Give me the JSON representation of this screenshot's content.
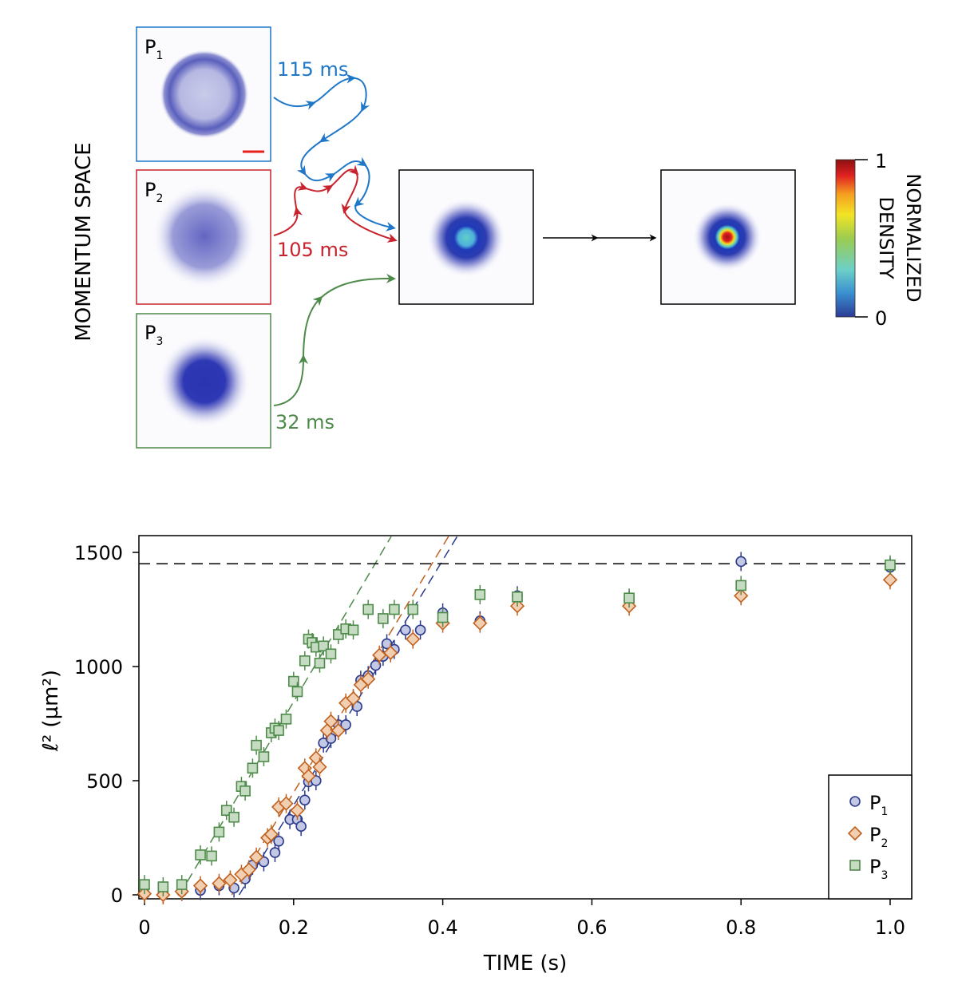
{
  "diagram": {
    "side_label": "MOMENTUM SPACE",
    "panels": [
      {
        "base": "P",
        "sub": "1",
        "color": "#1f77c8"
      },
      {
        "base": "P",
        "sub": "2",
        "color": "#c8232c"
      },
      {
        "base": "P",
        "sub": "3",
        "color": "#4e8a4a"
      }
    ],
    "times": [
      "115 ms",
      "105 ms",
      "32 ms"
    ],
    "colorbar": {
      "title_line1": "NORMALIZED",
      "title_line2": "DENSITY",
      "max_label": "1",
      "min_label": "0",
      "colormap": "jet"
    }
  },
  "chart_data": {
    "type": "scatter",
    "xlabel": "TIME (s)",
    "ylabel": "ℓ² (µm²)",
    "xlim": [
      -0.01,
      1.03
    ],
    "ylim": [
      -30,
      1570
    ],
    "xticks": [
      "0",
      "0.2",
      "0.4",
      "0.6",
      "0.8",
      "1.0"
    ],
    "xtick_values": [
      0,
      0.2,
      0.4,
      0.6,
      0.8,
      1.0
    ],
    "yticks": [
      "0",
      "500",
      "1000",
      "1500"
    ],
    "ytick_values": [
      0,
      500,
      1000,
      1500
    ],
    "grid": false,
    "legend_position": "bottom-right",
    "reference_line": {
      "y": 1450,
      "style": "dashed",
      "color": "#000000"
    },
    "series": [
      {
        "name": "P1",
        "base": "P",
        "sub": "1",
        "marker": "circle",
        "stroke": "#2b3a8c",
        "fill": "#c3c8e4",
        "fit": {
          "x0": 0.127,
          "slope": 5370
        },
        "points": [
          [
            0,
            5
          ],
          [
            0.025,
            5
          ],
          [
            0.05,
            15
          ],
          [
            0.075,
            20
          ],
          [
            0.1,
            40
          ],
          [
            0.12,
            30
          ],
          [
            0.135,
            70
          ],
          [
            0.145,
            130
          ],
          [
            0.16,
            145
          ],
          [
            0.175,
            185
          ],
          [
            0.18,
            235
          ],
          [
            0.195,
            330
          ],
          [
            0.205,
            330
          ],
          [
            0.21,
            300
          ],
          [
            0.215,
            415
          ],
          [
            0.22,
            495
          ],
          [
            0.23,
            500
          ],
          [
            0.24,
            665
          ],
          [
            0.25,
            685
          ],
          [
            0.26,
            745
          ],
          [
            0.27,
            745
          ],
          [
            0.28,
            855
          ],
          [
            0.285,
            825
          ],
          [
            0.29,
            940
          ],
          [
            0.3,
            960
          ],
          [
            0.31,
            1005
          ],
          [
            0.32,
            1045
          ],
          [
            0.325,
            1100
          ],
          [
            0.335,
            1075
          ],
          [
            0.35,
            1160
          ],
          [
            0.37,
            1160
          ],
          [
            0.4,
            1235
          ],
          [
            0.45,
            1200
          ],
          [
            0.5,
            1310
          ],
          [
            0.65,
            1290
          ],
          [
            0.8,
            1460
          ],
          [
            1.0,
            1435
          ]
        ]
      },
      {
        "name": "P2",
        "base": "P",
        "sub": "2",
        "marker": "diamond",
        "stroke": "#c0611f",
        "fill": "#f2cfb0",
        "fit": {
          "x0": 0.117,
          "slope": 5400
        },
        "points": [
          [
            0,
            5
          ],
          [
            0.025,
            0
          ],
          [
            0.05,
            15
          ],
          [
            0.075,
            40
          ],
          [
            0.1,
            50
          ],
          [
            0.115,
            65
          ],
          [
            0.13,
            90
          ],
          [
            0.14,
            110
          ],
          [
            0.15,
            165
          ],
          [
            0.165,
            250
          ],
          [
            0.17,
            265
          ],
          [
            0.18,
            385
          ],
          [
            0.19,
            400
          ],
          [
            0.205,
            370
          ],
          [
            0.215,
            555
          ],
          [
            0.22,
            520
          ],
          [
            0.23,
            600
          ],
          [
            0.235,
            560
          ],
          [
            0.245,
            720
          ],
          [
            0.25,
            760
          ],
          [
            0.26,
            720
          ],
          [
            0.27,
            840
          ],
          [
            0.28,
            860
          ],
          [
            0.29,
            920
          ],
          [
            0.3,
            945
          ],
          [
            0.315,
            1050
          ],
          [
            0.33,
            1060
          ],
          [
            0.36,
            1120
          ],
          [
            0.4,
            1190
          ],
          [
            0.45,
            1190
          ],
          [
            0.5,
            1265
          ],
          [
            0.65,
            1265
          ],
          [
            0.8,
            1310
          ],
          [
            1.0,
            1380
          ]
        ]
      },
      {
        "name": "P3",
        "base": "P",
        "sub": "3",
        "marker": "square",
        "stroke": "#4e8a4a",
        "fill": "#c5dcc3",
        "fit": {
          "x0": 0.047,
          "slope": 5530
        },
        "points": [
          [
            0,
            45
          ],
          [
            0.025,
            35
          ],
          [
            0.05,
            45
          ],
          [
            0.075,
            175
          ],
          [
            0.09,
            170
          ],
          [
            0.1,
            275
          ],
          [
            0.11,
            370
          ],
          [
            0.12,
            340
          ],
          [
            0.13,
            475
          ],
          [
            0.135,
            455
          ],
          [
            0.145,
            555
          ],
          [
            0.15,
            655
          ],
          [
            0.16,
            605
          ],
          [
            0.17,
            710
          ],
          [
            0.175,
            730
          ],
          [
            0.18,
            720
          ],
          [
            0.19,
            770
          ],
          [
            0.2,
            935
          ],
          [
            0.205,
            890
          ],
          [
            0.215,
            1025
          ],
          [
            0.22,
            1120
          ],
          [
            0.225,
            1105
          ],
          [
            0.23,
            1085
          ],
          [
            0.235,
            1015
          ],
          [
            0.24,
            1090
          ],
          [
            0.25,
            1055
          ],
          [
            0.26,
            1140
          ],
          [
            0.27,
            1165
          ],
          [
            0.28,
            1160
          ],
          [
            0.3,
            1250
          ],
          [
            0.32,
            1210
          ],
          [
            0.335,
            1250
          ],
          [
            0.36,
            1250
          ],
          [
            0.4,
            1215
          ],
          [
            0.45,
            1315
          ],
          [
            0.5,
            1305
          ],
          [
            0.65,
            1300
          ],
          [
            0.8,
            1355
          ],
          [
            1.0,
            1445
          ]
        ]
      }
    ]
  }
}
